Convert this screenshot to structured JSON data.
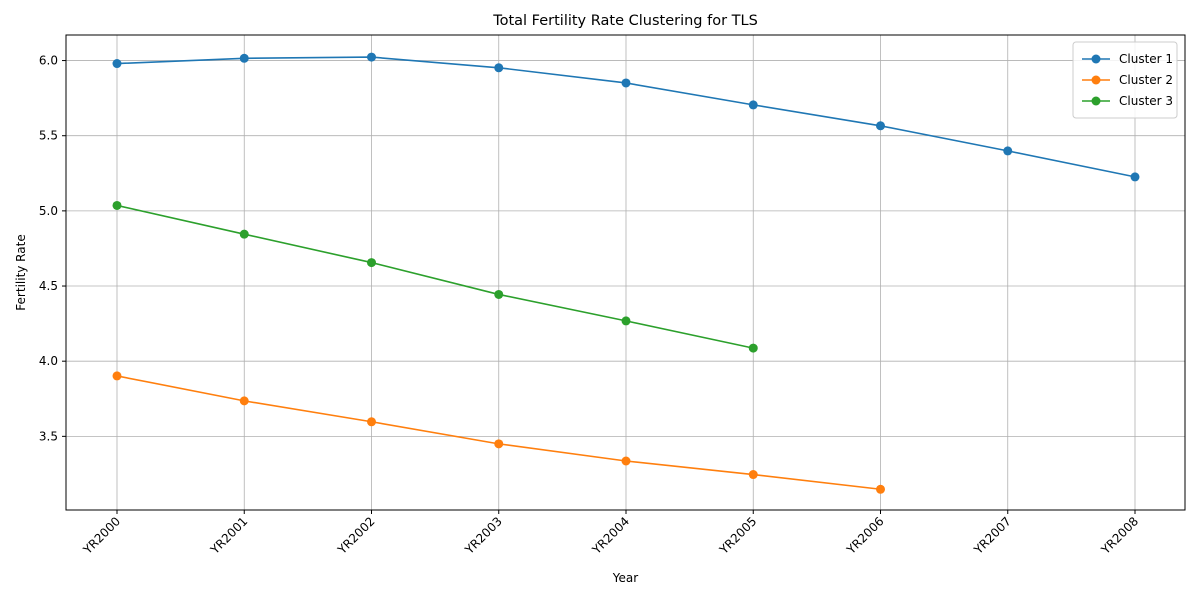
{
  "chart_data": {
    "type": "line",
    "title": "Total Fertility Rate Clustering for TLS",
    "xlabel": "Year",
    "ylabel": "Fertility Rate",
    "categories": [
      "YR2000",
      "YR2001",
      "YR2002",
      "YR2003",
      "YR2004",
      "YR2005",
      "YR2006",
      "YR2007",
      "YR2008"
    ],
    "ylim": [
      3.01,
      6.17
    ],
    "yticks": [
      3.5,
      4.0,
      4.5,
      5.0,
      5.5,
      6.0
    ],
    "ytick_labels": [
      "3.5",
      "4.0",
      "4.5",
      "5.0",
      "5.5",
      "6.0"
    ],
    "grid": true,
    "legend_position": "top-right",
    "series": [
      {
        "name": "Cluster 1",
        "color": "#1f77b4",
        "values": [
          5.98,
          6.015,
          6.023,
          5.952,
          5.851,
          5.705,
          5.566,
          5.399,
          5.226
        ]
      },
      {
        "name": "Cluster 2",
        "color": "#ff7f0e",
        "values": [
          3.902,
          3.736,
          3.597,
          3.45,
          3.336,
          3.246,
          3.148,
          null,
          null
        ]
      },
      {
        "name": "Cluster 3",
        "color": "#2ca02c",
        "values": [
          5.036,
          4.845,
          4.656,
          4.444,
          4.268,
          4.087,
          null,
          null,
          null
        ]
      }
    ]
  }
}
